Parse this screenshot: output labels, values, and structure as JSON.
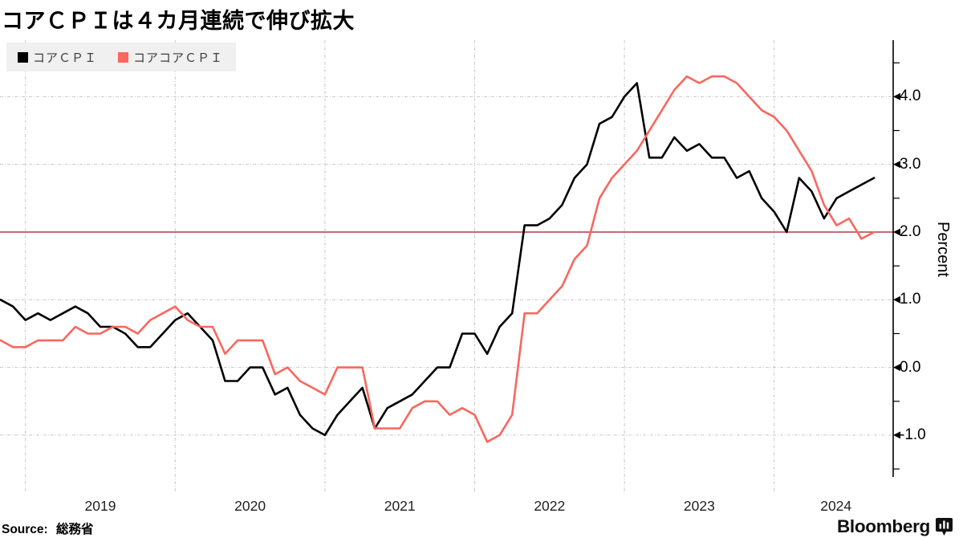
{
  "title": "コアＣＰＩは４カ月連続で伸び拡大",
  "legend": {
    "items": [
      {
        "label": "コアＣＰＩ",
        "color": "#000000"
      },
      {
        "label": "コアコアＣＰＩ",
        "color": "#f9675e"
      }
    ]
  },
  "y_axis": {
    "label": "Percent",
    "tick_labels": [
      "4.0",
      "3.0",
      "2.0",
      "1.0",
      "0.0",
      "-1.0"
    ],
    "tick_values": [
      4,
      3,
      2,
      1,
      0,
      -1
    ]
  },
  "x_axis": {
    "tick_labels": [
      "2019",
      "2020",
      "2021",
      "2022",
      "2023",
      "2024"
    ]
  },
  "source": {
    "label": "Source:",
    "value": "総務省"
  },
  "branding": {
    "wordmark": "Bloomberg",
    "icon": "bloomberg-bars-icon"
  },
  "colors": {
    "core_line": "#000000",
    "corecore_line": "#f9675e",
    "baseline": "#b23a4a",
    "grid": "#c9c9c9",
    "axis": "#000000",
    "legend_bg": "#f0f0f0"
  },
  "chart_data": {
    "type": "line",
    "title": "コアＣＰＩは４カ月連続で伸び拡大",
    "ylabel": "Percent",
    "ylim": [
      -1.6,
      4.85
    ],
    "y_ticks": [
      4.0,
      3.0,
      2.0,
      1.0,
      0.0,
      -1.0
    ],
    "grid": true,
    "legend_position": "top-left",
    "baseline_value": 2.0,
    "months": [
      "2018-10",
      "2018-11",
      "2018-12",
      "2019-01",
      "2019-02",
      "2019-03",
      "2019-04",
      "2019-05",
      "2019-06",
      "2019-07",
      "2019-08",
      "2019-09",
      "2019-10",
      "2019-11",
      "2019-12",
      "2020-01",
      "2020-02",
      "2020-03",
      "2020-04",
      "2020-05",
      "2020-06",
      "2020-07",
      "2020-08",
      "2020-09",
      "2020-10",
      "2020-11",
      "2020-12",
      "2021-01",
      "2021-02",
      "2021-03",
      "2021-04",
      "2021-05",
      "2021-06",
      "2021-07",
      "2021-08",
      "2021-09",
      "2021-10",
      "2021-11",
      "2021-12",
      "2022-01",
      "2022-02",
      "2022-03",
      "2022-04",
      "2022-05",
      "2022-06",
      "2022-07",
      "2022-08",
      "2022-09",
      "2022-10",
      "2022-11",
      "2022-12",
      "2023-01",
      "2023-02",
      "2023-03",
      "2023-04",
      "2023-05",
      "2023-06",
      "2023-07",
      "2023-08",
      "2023-09",
      "2023-10",
      "2023-11",
      "2023-12",
      "2024-01",
      "2024-02",
      "2024-03",
      "2024-04",
      "2024-05",
      "2024-06",
      "2024-07",
      "2024-08"
    ],
    "series": [
      {
        "name": "コアＣＰＩ",
        "color": "#000000",
        "values": [
          1.0,
          0.9,
          0.7,
          0.8,
          0.7,
          0.8,
          0.9,
          0.8,
          0.6,
          0.6,
          0.5,
          0.3,
          0.3,
          0.5,
          0.7,
          0.8,
          0.6,
          0.4,
          -0.2,
          -0.2,
          0.0,
          0.0,
          -0.4,
          -0.3,
          -0.7,
          -0.9,
          -1.0,
          -0.7,
          -0.5,
          -0.3,
          -0.9,
          -0.6,
          -0.5,
          -0.4,
          -0.2,
          0.0,
          0.0,
          0.5,
          0.5,
          0.2,
          0.6,
          0.8,
          2.1,
          2.1,
          2.2,
          2.4,
          2.8,
          3.0,
          3.6,
          3.7,
          4.0,
          4.2,
          3.1,
          3.1,
          3.4,
          3.2,
          3.3,
          3.1,
          3.1,
          2.8,
          2.9,
          2.5,
          2.3,
          2.0,
          2.8,
          2.6,
          2.2,
          2.5,
          2.6,
          2.7,
          2.8
        ]
      },
      {
        "name": "コアコアＣＰＩ",
        "color": "#f9675e",
        "values": [
          0.4,
          0.3,
          0.3,
          0.4,
          0.4,
          0.4,
          0.6,
          0.5,
          0.5,
          0.6,
          0.6,
          0.5,
          0.7,
          0.8,
          0.9,
          0.7,
          0.6,
          0.6,
          0.2,
          0.4,
          0.4,
          0.4,
          -0.1,
          0.0,
          -0.2,
          -0.3,
          -0.4,
          0.0,
          0.0,
          0.0,
          -0.9,
          -0.9,
          -0.9,
          -0.6,
          -0.5,
          -0.5,
          -0.7,
          -0.6,
          -0.7,
          -1.1,
          -1.0,
          -0.7,
          0.8,
          0.8,
          1.0,
          1.2,
          1.6,
          1.8,
          2.5,
          2.8,
          3.0,
          3.2,
          3.5,
          3.8,
          4.1,
          4.3,
          4.2,
          4.3,
          4.3,
          4.2,
          4.0,
          3.8,
          3.7,
          3.5,
          3.2,
          2.9,
          2.4,
          2.1,
          2.2,
          1.9,
          2.0
        ]
      }
    ]
  }
}
